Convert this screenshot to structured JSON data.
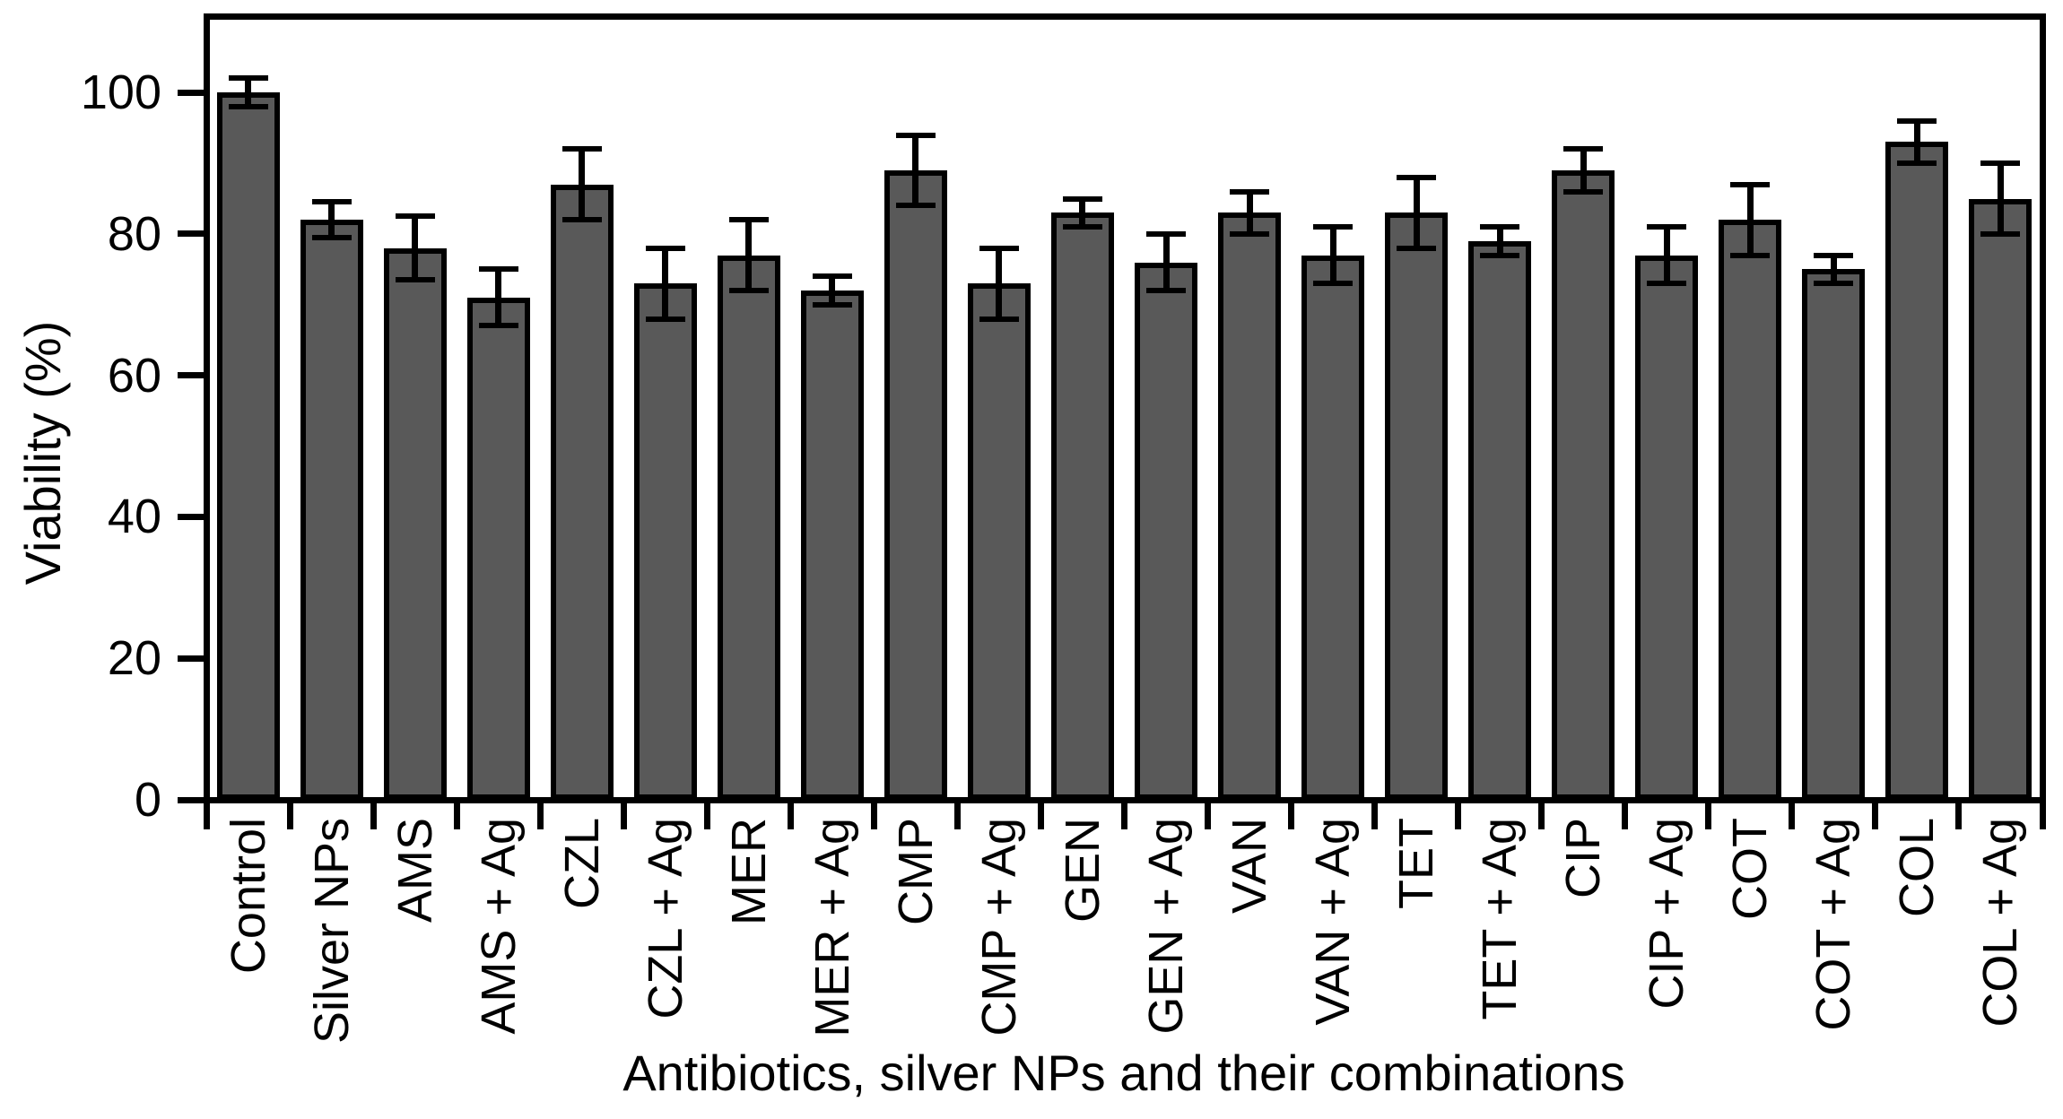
{
  "chart_data": {
    "type": "bar",
    "title": "",
    "xlabel": "Antibiotics, silver NPs and their combinations",
    "ylabel": "Viability (%)",
    "categories": [
      "Control",
      "Silver NPs",
      "AMS",
      "AMS + Ag",
      "CZL",
      "CZL + Ag",
      "MER",
      "MER + Ag",
      "CMP",
      "CMP + Ag",
      "GEN",
      "GEN + Ag",
      "VAN",
      "VAN + Ag",
      "TET",
      "TET + Ag",
      "CIP",
      "CIP + Ag",
      "COT",
      "COT + Ag",
      "COL",
      "COL + Ag"
    ],
    "values": [
      100,
      82,
      78,
      71,
      87,
      73,
      77,
      72,
      89,
      73,
      83,
      76,
      83,
      77,
      83,
      79,
      89,
      77,
      82,
      75,
      93,
      85
    ],
    "errors": [
      2,
      2.5,
      4.5,
      4,
      5,
      5,
      5,
      2,
      5,
      5,
      2,
      4,
      3,
      4,
      5,
      2,
      3,
      4,
      5,
      2,
      3,
      5
    ],
    "yticks": [
      0,
      20,
      40,
      60,
      80,
      100
    ],
    "ylim": [
      0,
      110.8
    ],
    "grid": false,
    "legend": false,
    "bar_color": "#595959",
    "bar_border_color": "#000000",
    "error_bar_color": "#000000",
    "frame_color": "#000000",
    "background_color": "#ffffff"
  }
}
